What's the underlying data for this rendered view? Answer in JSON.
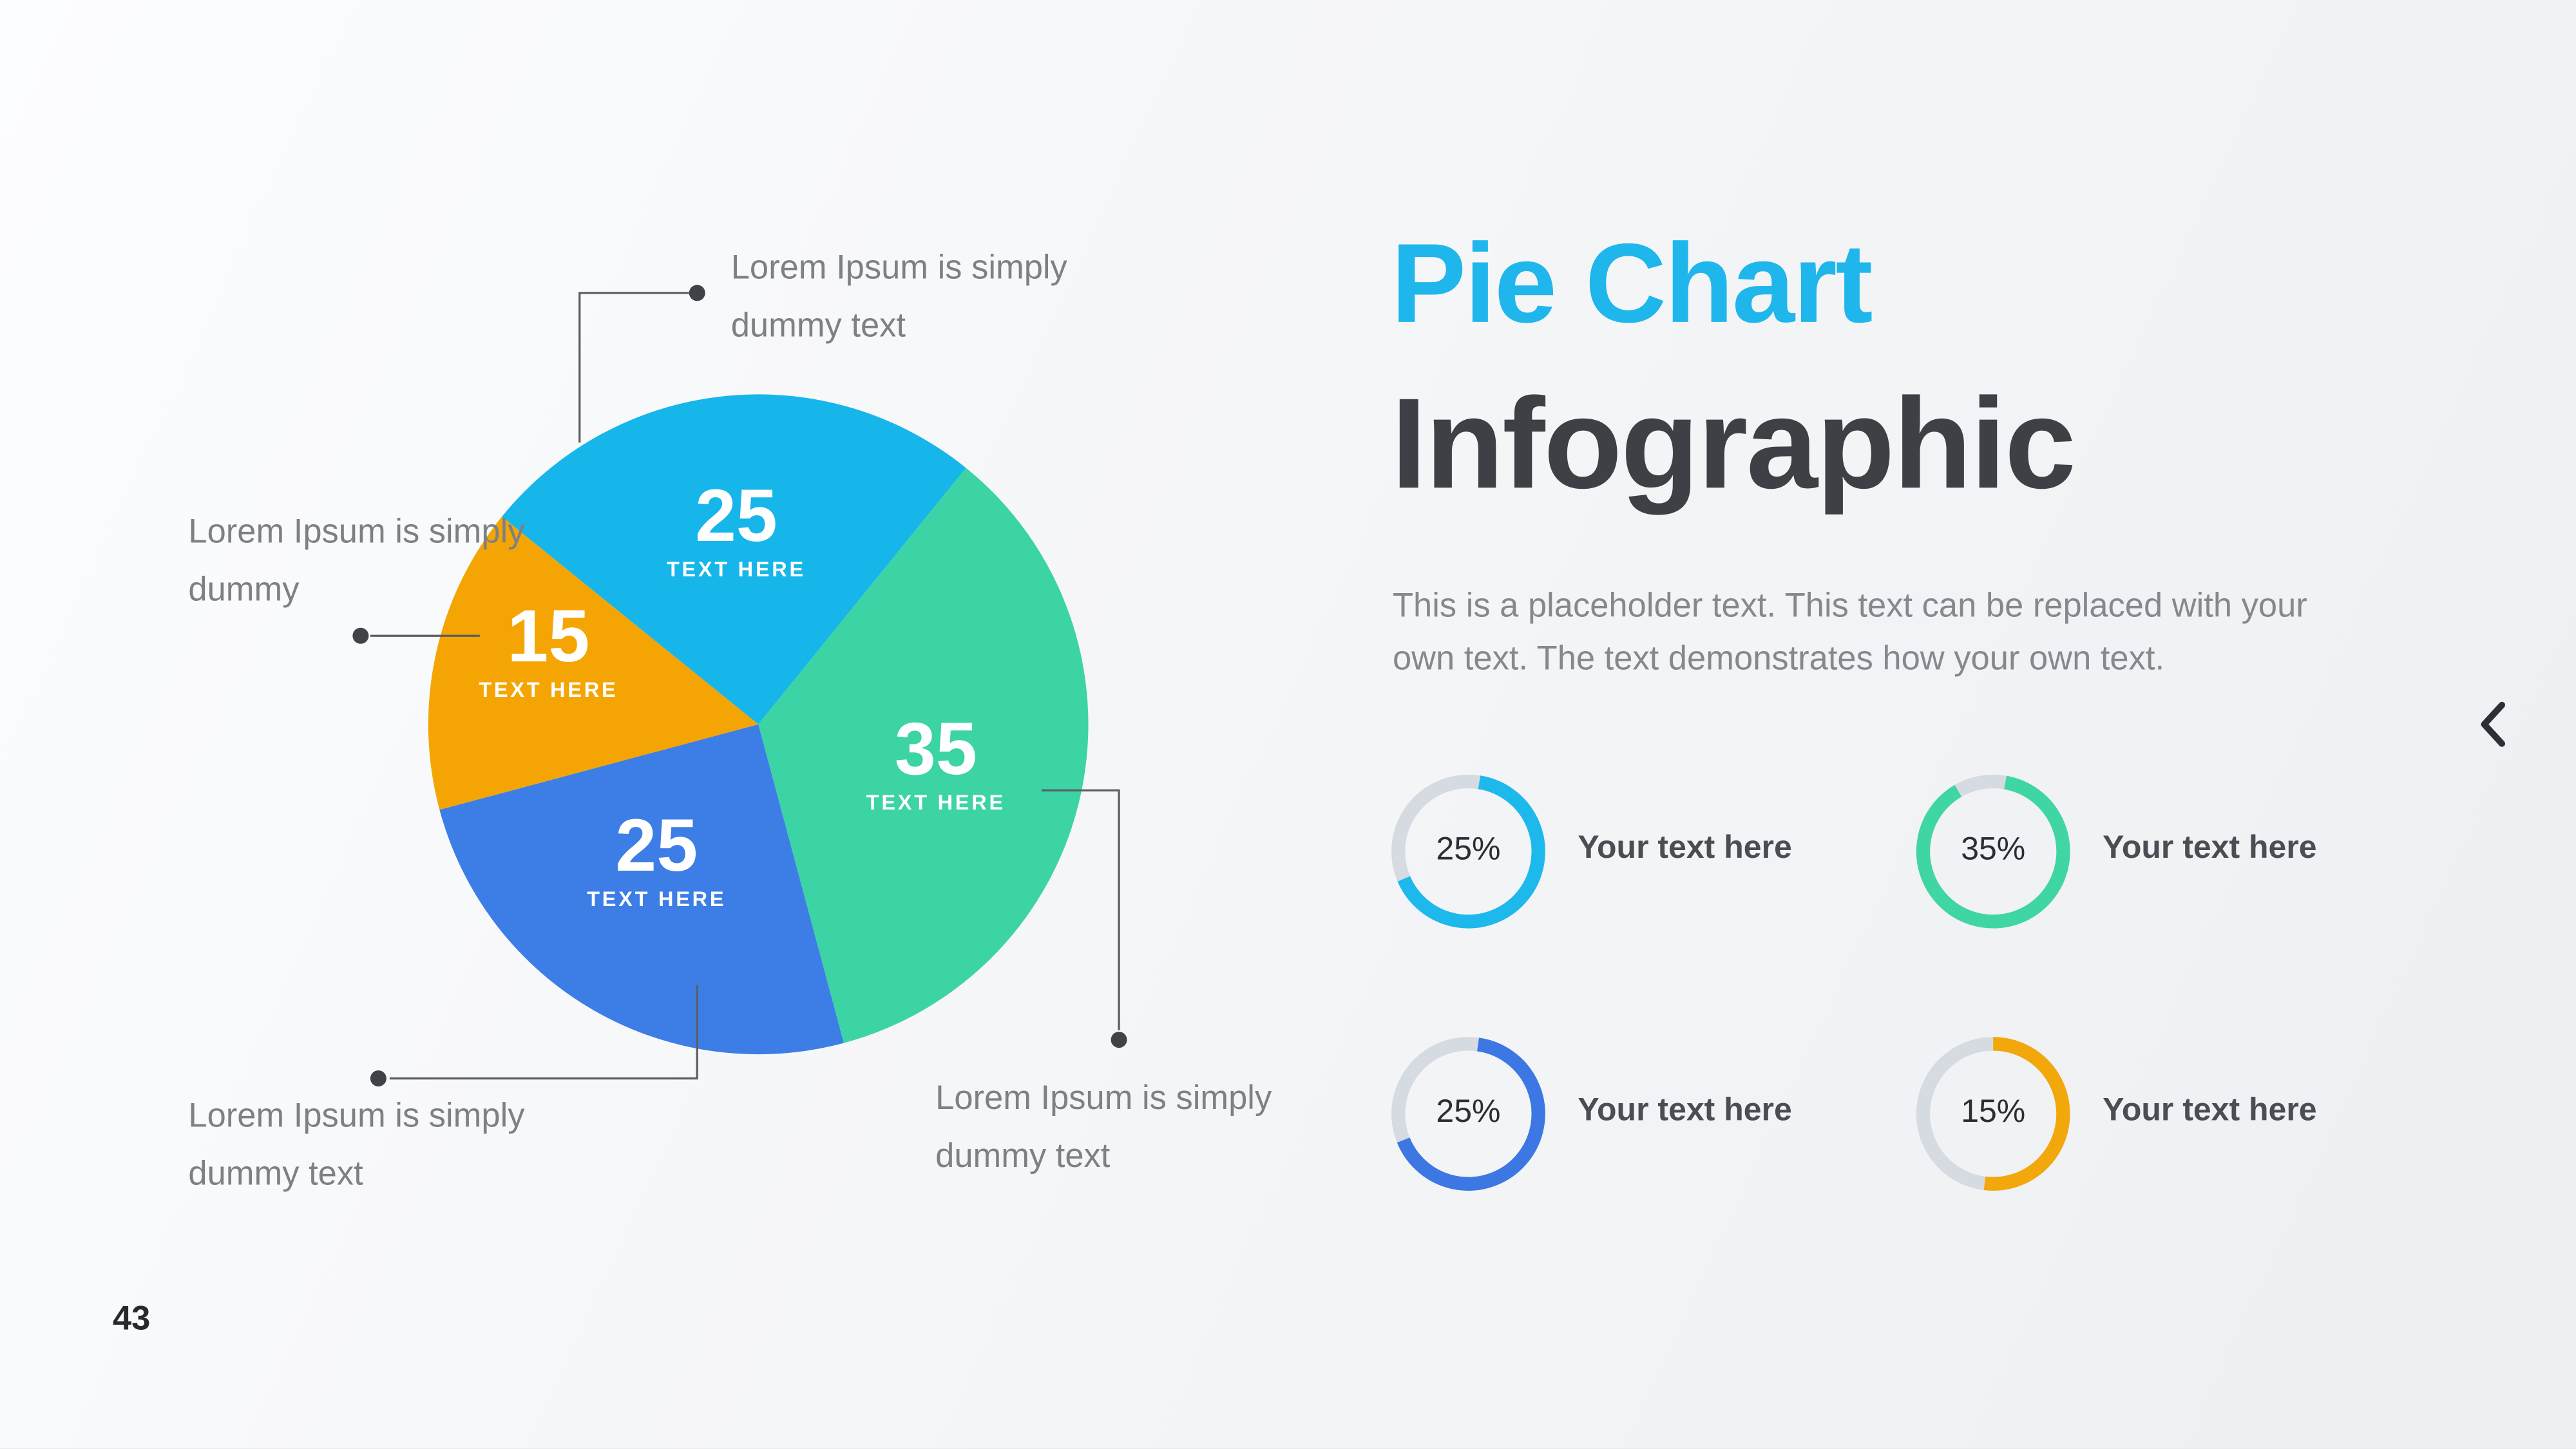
{
  "page": {
    "number": "43"
  },
  "title": {
    "line1": "Pie Chart",
    "line2": "Infographic",
    "accent_color": "#1FB6EC",
    "dark_color": "#3D4146"
  },
  "paragraph": {
    "line1": "This is a placeholder text. This text can be replaced with your",
    "line2": "own text. The text demonstrates how your own text."
  },
  "chart_data": [
    {
      "type": "pie",
      "title": "Pie Chart Infographic",
      "values": [
        25,
        35,
        25,
        15
      ],
      "labels": [
        "25",
        "35",
        "25",
        "15"
      ],
      "sublabels": [
        "TEXT HERE",
        "TEXT HERE",
        "TEXT HERE",
        "TEXT HERE"
      ],
      "colors": [
        "#16B6EA",
        "#3CD4A4",
        "#3C7EE6",
        "#F5A503"
      ],
      "start_angle_deg": -51,
      "legend": false
    },
    {
      "type": "donut-gauges",
      "track_color": "#D6DBE2",
      "items": [
        {
          "percent": "25%",
          "value": 25,
          "label": "Your text here",
          "color": "#1EB9EC"
        },
        {
          "percent": "35%",
          "value": 35,
          "label": "Your text here",
          "color": "#40D6A3"
        },
        {
          "percent": "25%",
          "value": 25,
          "label": "Your text here",
          "color": "#3C77E3"
        },
        {
          "percent": "15%",
          "value": 15,
          "label": "Your text here",
          "color": "#F2A70B"
        }
      ]
    }
  ],
  "callouts": [
    {
      "line1": "Lorem Ipsum is simply",
      "line2": "dummy text"
    },
    {
      "line1": "Lorem Ipsum is simply",
      "line2": "dummy"
    },
    {
      "line1": "Lorem Ipsum is simply",
      "line2": "dummy text"
    },
    {
      "line1": "Lorem Ipsum is simply",
      "line2": "dummy text"
    }
  ],
  "colors": {
    "callout_line": "#5b5e63",
    "callout_dot": "#3f4347",
    "background": "#f4f5f7",
    "text_gray": "#7d8085",
    "dark_text": "#2b2e33"
  },
  "nav": {
    "back_chevron": "left"
  }
}
